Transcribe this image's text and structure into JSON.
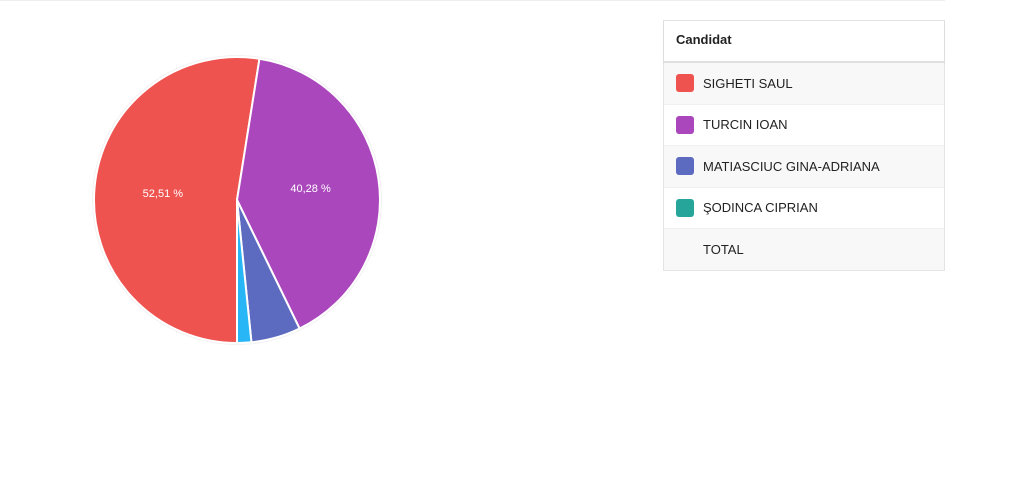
{
  "chart_data": {
    "type": "pie",
    "categories": [
      "SIGHETI SAUL",
      "TURCIN IOAN",
      "MATIASCIUC GINA-ADRIANA",
      "ŞODINCA CIPRIAN"
    ],
    "values": [
      52.51,
      40.28,
      5.6,
      1.61
    ],
    "value_labels": [
      "52,51 %",
      "40,28 %",
      null,
      null
    ],
    "colors": [
      "#ef5350",
      "#ab47bc",
      "#5c6bc0",
      "#29b6f6"
    ]
  },
  "legend": {
    "header": "Candidat",
    "colors": [
      "#ef5350",
      "#ab47bc",
      "#5c6bc0",
      "#26a69a"
    ],
    "total": "TOTAL"
  }
}
